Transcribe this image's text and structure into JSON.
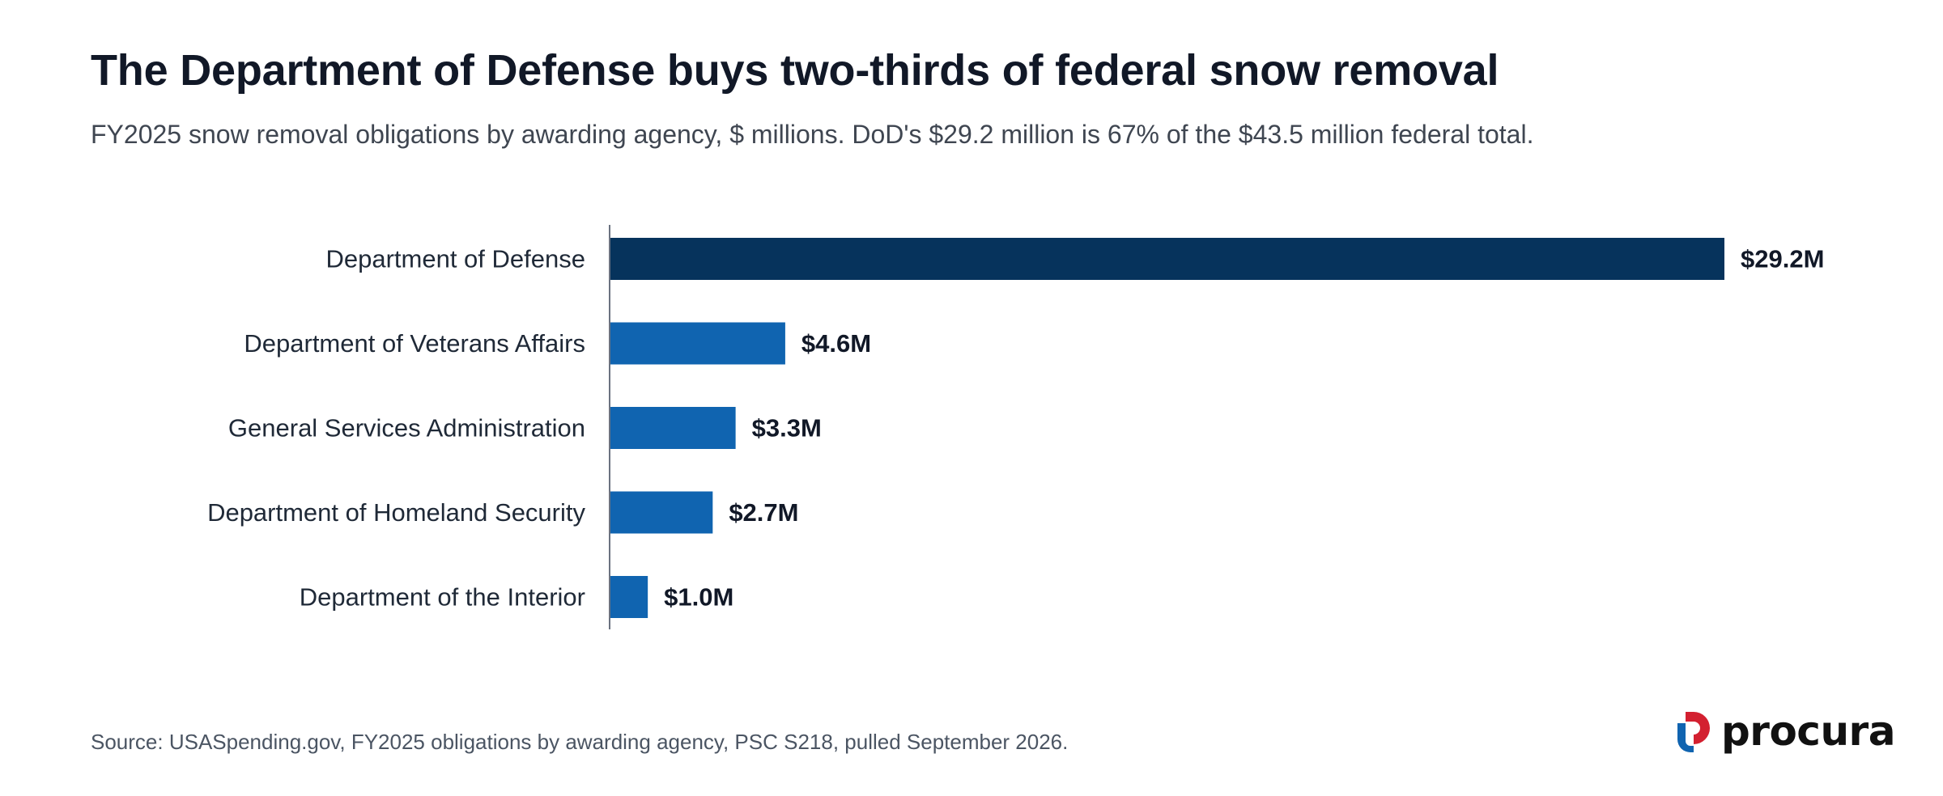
{
  "header": {
    "title": "The Department of Defense buys two-thirds of federal snow removal",
    "subtitle": "FY2025 snow removal obligations by awarding agency, $ millions. DoD's $29.2 million is 67% of the $43.5 million federal total."
  },
  "chart_data": {
    "type": "bar",
    "orientation": "horizontal",
    "categories": [
      "Department of Defense",
      "Department of Veterans Affairs",
      "General Services Administration",
      "Department of Homeland Security",
      "Department of the Interior"
    ],
    "values": [
      29.2,
      4.6,
      3.3,
      2.7,
      1.0
    ],
    "data_labels": [
      "$29.2M",
      "$4.6M",
      "$3.3M",
      "$2.7M",
      "$1.0M"
    ],
    "unit": "$ millions",
    "xlim": [
      0,
      29.2
    ],
    "grid": false,
    "legend": "none",
    "colors": {
      "highlight": "#06335c",
      "default": "#1064b0",
      "axis": "#6b7280"
    }
  },
  "footer": {
    "source": "Source: USASpending.gov, FY2025 obligations by awarding agency, PSC S218, pulled September 2026.",
    "logo_text": "procura",
    "logo_colors": {
      "red": "#d32030",
      "blue": "#1064b0"
    }
  }
}
